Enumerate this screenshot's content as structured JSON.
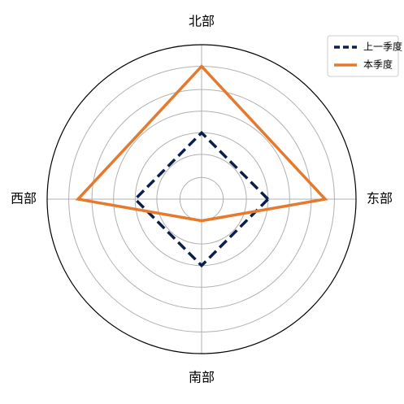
{
  "chart_data": {
    "type": "radar",
    "axes": [
      "东部",
      "北部",
      "西部",
      "南部"
    ],
    "rlim": [
      0,
      1
    ],
    "grid": true,
    "legend_position": "top-right",
    "series": [
      {
        "name": "上一季度",
        "values": [
          0.43,
          0.43,
          0.43,
          0.43
        ],
        "color": "#0b1f4d",
        "line_style": "dashed"
      },
      {
        "name": "本季度",
        "values": [
          0.8,
          0.86,
          0.8,
          0.14
        ],
        "color": "#e57a2e",
        "line_style": "solid"
      }
    ],
    "ring_values": [
      0.14,
      0.29,
      0.43,
      0.57,
      0.71,
      0.86
    ]
  }
}
